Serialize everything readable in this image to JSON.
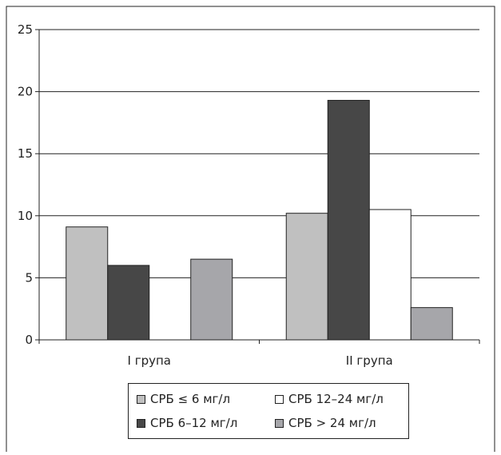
{
  "chart_data": {
    "type": "bar",
    "title": "",
    "xlabel": "",
    "ylabel": "",
    "ylim": [
      0,
      25
    ],
    "yticks": [
      "0",
      "5",
      "10",
      "15",
      "20",
      "25"
    ],
    "categories": [
      "I група",
      "II група"
    ],
    "grid": true,
    "legend_position": "bottom",
    "series": [
      {
        "name": "СРБ ≤ 6 мг/л",
        "color": "#c0c0c0",
        "values": [
          9.1,
          10.2
        ]
      },
      {
        "name": "СРБ 6–12 мг/л",
        "color": "#474747",
        "values": [
          6.0,
          19.3
        ]
      },
      {
        "name": "СРБ 12–24 мг/л",
        "color": "#ffffff",
        "values": [
          0,
          10.5
        ]
      },
      {
        "name": "СРБ > 24 мг/л",
        "color": "#a6a6aa",
        "values": [
          6.5,
          2.6
        ]
      }
    ]
  }
}
